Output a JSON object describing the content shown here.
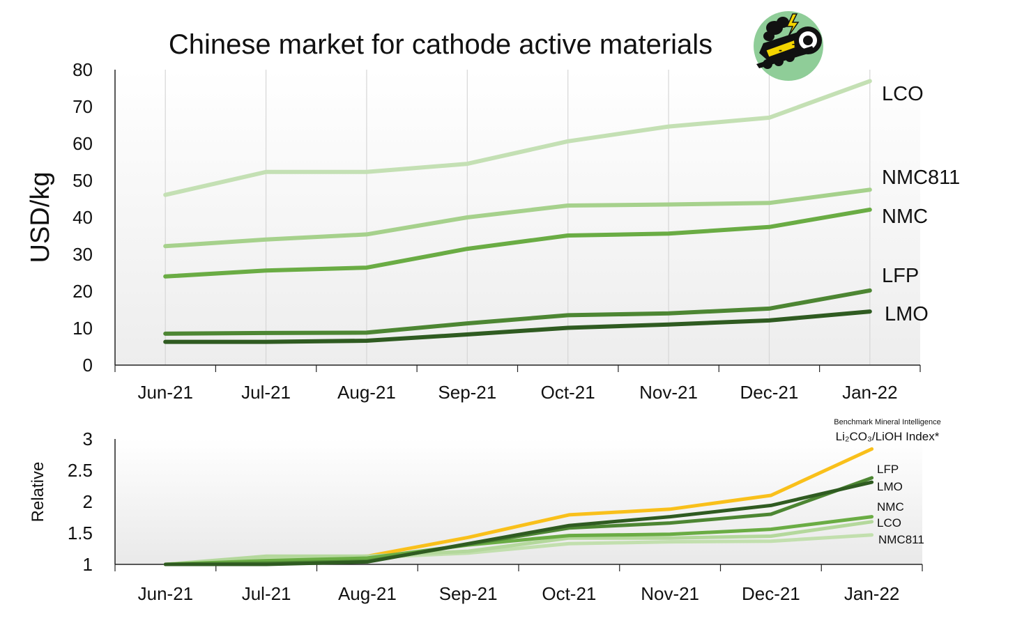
{
  "chart_data": [
    {
      "type": "line",
      "title": "Chinese market for cathode active materials",
      "ylabel": "USD/kg",
      "xlabel": "",
      "categories": [
        "Jun-21",
        "Jul-21",
        "Aug-21",
        "Sep-21",
        "Oct-21",
        "Nov-21",
        "Dec-21",
        "Jan-22"
      ],
      "ylim": [
        0,
        80
      ],
      "yticks": [
        0,
        10,
        20,
        30,
        40,
        50,
        60,
        70,
        80
      ],
      "grid": "vertical",
      "legend": "labels at line ends",
      "series": [
        {
          "name": "LCO",
          "color": "#c4e0b4",
          "values": [
            46.1,
            52.3,
            52.3,
            54.5,
            60.6,
            64.6,
            67.0,
            76.9
          ]
        },
        {
          "name": "NMC811",
          "color": "#a6d18c",
          "values": [
            32.2,
            34.0,
            35.4,
            40.0,
            43.2,
            43.5,
            43.9,
            47.5
          ]
        },
        {
          "name": "NMC",
          "color": "#6aac44",
          "values": [
            24.0,
            25.6,
            26.4,
            31.5,
            35.1,
            35.6,
            37.4,
            42.1
          ]
        },
        {
          "name": "LFP",
          "color": "#4d8633",
          "values": [
            8.5,
            8.7,
            8.8,
            11.3,
            13.5,
            14.0,
            15.3,
            20.2
          ]
        },
        {
          "name": "LMO",
          "color": "#2f5b21",
          "values": [
            6.3,
            6.3,
            6.6,
            8.3,
            10.1,
            11.0,
            12.1,
            14.5
          ]
        }
      ]
    },
    {
      "type": "line",
      "title": "",
      "ylabel": "Relative",
      "xlabel": "",
      "categories": [
        "Jun-21",
        "Jul-21",
        "Aug-21",
        "Sep-21",
        "Oct-21",
        "Nov-21",
        "Dec-21",
        "Jan-22"
      ],
      "ylim": [
        1,
        3
      ],
      "yticks": [
        1,
        1.5,
        2,
        2.5,
        3
      ],
      "ytick_labels": [
        "1",
        "1.5",
        "2",
        "2.5",
        "3"
      ],
      "grid": "none",
      "legend": "labels at line ends",
      "annotation": {
        "line1": "Benchmark Mineral Intelligence",
        "line2": "Li₂CO₃/LiOH Index*"
      },
      "series": [
        {
          "name": "Li2CO3/LiOH Index",
          "color": "#f9c01b",
          "values": [
            1.0,
            1.08,
            1.13,
            1.43,
            1.79,
            1.88,
            2.1,
            2.84
          ]
        },
        {
          "name": "NMC811",
          "color": "#c2dfae",
          "values": [
            1.0,
            1.11,
            1.11,
            1.18,
            1.33,
            1.36,
            1.37,
            1.47
          ]
        },
        {
          "name": "LCO",
          "color": "#b4d89c",
          "values": [
            1.0,
            1.13,
            1.13,
            1.21,
            1.42,
            1.42,
            1.45,
            1.68
          ]
        },
        {
          "name": "NMC",
          "color": "#6aac44",
          "values": [
            1.0,
            1.06,
            1.1,
            1.31,
            1.46,
            1.48,
            1.56,
            1.76
          ]
        },
        {
          "name": "LFP",
          "color": "#4d8633",
          "values": [
            1.0,
            1.02,
            1.05,
            1.32,
            1.58,
            1.66,
            1.8,
            2.38
          ]
        },
        {
          "name": "LMO",
          "color": "#2f5b21",
          "values": [
            1.0,
            1.0,
            1.04,
            1.33,
            1.62,
            1.76,
            1.94,
            2.31
          ]
        }
      ]
    }
  ]
}
